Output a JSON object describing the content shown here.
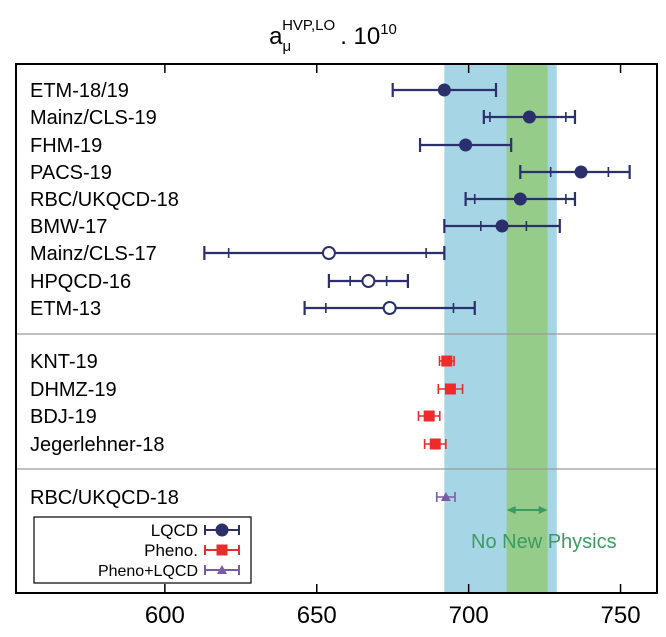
{
  "chart_data": {
    "type": "scatter",
    "title": {
      "base": "a",
      "sub": "μ",
      "sup": "HVP,LO",
      "rest": ". 10",
      "exp": "10"
    },
    "xlim": [
      551,
      762
    ],
    "x_ticks": [
      "600",
      "650",
      "700",
      "750"
    ],
    "x_tick_values": [
      600,
      650,
      700,
      750
    ],
    "grid": false,
    "colors": {
      "lqcd": "#2b2f6b",
      "pheno": "#ee2b2b",
      "combined": "#7b5aa6",
      "band_outer": "#a6d6e6",
      "band_inner": "#95cc8a",
      "no_new_physics": "#3d9a63",
      "separator": "#9a9a9a"
    },
    "bands": [
      {
        "name": "outer",
        "from": 692,
        "to": 729
      },
      {
        "name": "inner",
        "from": 712.5,
        "to": 726
      }
    ],
    "annotation": {
      "text": "No New Physics",
      "arrow_from": 712.5,
      "arrow_to": 726
    },
    "sections": [
      {
        "name": "lqcd",
        "series": "LQCD",
        "entries": [
          {
            "label": "ETM-18/19",
            "value": 692,
            "stat": null,
            "total": [
              675,
              709
            ],
            "marker": "circle-filled"
          },
          {
            "label": "Mainz/CLS-19",
            "value": 720,
            "stat": [
              707,
              732
            ],
            "total": [
              705,
              735
            ],
            "marker": "circle-filled"
          },
          {
            "label": "FHM-19",
            "value": 699,
            "stat": null,
            "total": [
              684,
              714
            ],
            "marker": "circle-filled"
          },
          {
            "label": "PACS-19",
            "value": 737,
            "stat": [
              727,
              746
            ],
            "total": [
              717,
              753
            ],
            "marker": "circle-filled"
          },
          {
            "label": "RBC/UKQCD-18",
            "value": 717,
            "stat": [
              702,
              732
            ],
            "total": [
              699,
              735
            ],
            "marker": "circle-filled"
          },
          {
            "label": "BMW-17",
            "value": 711,
            "stat": [
              704,
              719
            ],
            "total": [
              692,
              730
            ],
            "marker": "circle-filled"
          },
          {
            "label": "Mainz/CLS-17",
            "value": 654,
            "stat": [
              621,
              686
            ],
            "total": [
              613,
              692
            ],
            "marker": "circle-open"
          },
          {
            "label": "HPQCD-16",
            "value": 667,
            "stat": [
              661,
              673
            ],
            "total": [
              654,
              680
            ],
            "marker": "circle-open"
          },
          {
            "label": "ETM-13",
            "value": 674,
            "stat": [
              653,
              695
            ],
            "total": [
              646,
              702
            ],
            "marker": "circle-open"
          }
        ]
      },
      {
        "name": "pheno",
        "series": "Pheno.",
        "entries": [
          {
            "label": "KNT-19",
            "value": 692.8,
            "stat": null,
            "total": [
              690.4,
              695.2
            ],
            "marker": "square"
          },
          {
            "label": "DHMZ-19",
            "value": 694,
            "stat": null,
            "total": [
              690,
              698
            ],
            "marker": "square"
          },
          {
            "label": "BDJ-19",
            "value": 687,
            "stat": null,
            "total": [
              683.5,
              690.5
            ],
            "marker": "square"
          },
          {
            "label": "Jegerlehner-18",
            "value": 689,
            "stat": null,
            "total": [
              685.5,
              692.5
            ],
            "marker": "square"
          }
        ]
      },
      {
        "name": "combined",
        "series": "Pheno+LQCD",
        "entries": [
          {
            "label": "RBC/UKQCD-18",
            "value": 692.5,
            "stat": null,
            "total": [
              689.5,
              695.5
            ],
            "marker": "triangle"
          }
        ]
      }
    ],
    "legend": {
      "placement": "bottom-left",
      "items": [
        {
          "label": "LQCD",
          "marker": "circle-filled",
          "color": "#2b2f6b"
        },
        {
          "label": "Pheno.",
          "marker": "square",
          "color": "#ee2b2b"
        },
        {
          "label": "Pheno+LQCD",
          "marker": "triangle",
          "color": "#7b5aa6"
        }
      ]
    }
  }
}
